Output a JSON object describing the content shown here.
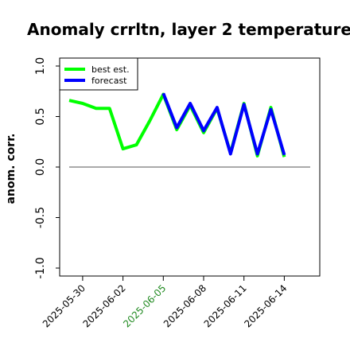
{
  "chart_data": {
    "type": "line",
    "title": "Anomaly crrltn, layer 2 temperature",
    "xlabel": "",
    "ylabel": "anom. corr.",
    "ylim": [
      -1.0,
      1.0
    ],
    "yticks": [
      "-1.0",
      "-0.5",
      "0.0",
      "0.5",
      "1.0"
    ],
    "x_tick_labels": [
      {
        "label": "2025-05-30",
        "color": "#000000"
      },
      {
        "label": "2025-06-02",
        "color": "#000000"
      },
      {
        "label": "2025-06-05",
        "color": "#228B22"
      },
      {
        "label": "2025-06-08",
        "color": "#000000"
      },
      {
        "label": "2025-06-11",
        "color": "#000000"
      },
      {
        "label": "2025-06-14",
        "color": "#000000"
      }
    ],
    "zero_line": true,
    "legend_position": "top-left",
    "series": [
      {
        "name": "best est.",
        "color": "#00ff00",
        "x": [
          "2025-05-29",
          "2025-05-30",
          "2025-05-31",
          "2025-06-01",
          "2025-06-02",
          "2025-06-03",
          "2025-06-04",
          "2025-06-05",
          "2025-06-06",
          "2025-06-07",
          "2025-06-08",
          "2025-06-09",
          "2025-06-10",
          "2025-06-11",
          "2025-06-12",
          "2025-06-13",
          "2025-06-14"
        ],
        "values": [
          0.66,
          0.63,
          0.58,
          0.58,
          0.18,
          0.22,
          0.46,
          0.72,
          0.37,
          0.61,
          0.34,
          0.58,
          0.14,
          0.63,
          0.11,
          0.59,
          0.1
        ]
      },
      {
        "name": "forecast",
        "color": "#0000ff",
        "x": [
          "2025-06-05",
          "2025-06-06",
          "2025-06-07",
          "2025-06-08",
          "2025-06-09",
          "2025-06-10",
          "2025-06-11",
          "2025-06-12",
          "2025-06-13",
          "2025-06-14"
        ],
        "values": [
          0.73,
          0.39,
          0.63,
          0.36,
          0.59,
          0.13,
          0.62,
          0.13,
          0.57,
          0.12
        ]
      }
    ]
  }
}
